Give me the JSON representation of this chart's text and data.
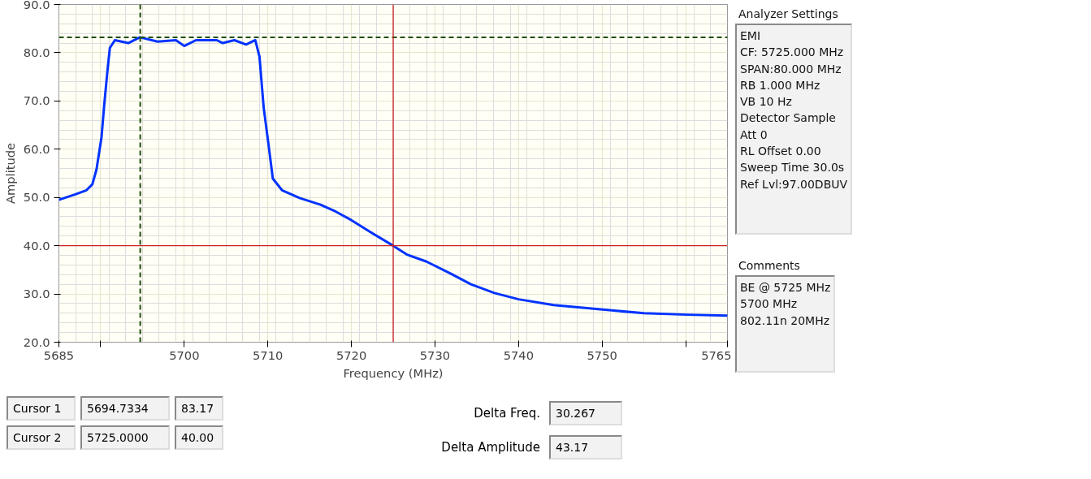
{
  "chart_data": {
    "type": "line",
    "xlabel": "Frequency (MHz)",
    "ylabel": "Amplitude",
    "xlim": [
      5685,
      5765
    ],
    "ylim": [
      20,
      90
    ],
    "xticks": [
      5685,
      {
        "value": 5690,
        "label": null
      },
      5700,
      5710,
      5720,
      5730,
      5740,
      5750,
      {
        "value": 5760,
        "label": null
      },
      5765
    ],
    "yticks": [
      {
        "value": 20,
        "label": "20.0"
      },
      {
        "value": 30,
        "label": "30.0"
      },
      {
        "value": 40,
        "label": "40.0"
      },
      {
        "value": 50,
        "label": "50.0"
      },
      {
        "value": 60,
        "label": "60.0"
      },
      {
        "value": 70,
        "label": "70.0"
      },
      {
        "value": 80,
        "label": "80.0"
      },
      {
        "value": 90,
        "label": "90.0"
      }
    ],
    "grid": true,
    "marker": "none",
    "line_style": "solid",
    "series": [
      {
        "color": "#0033ff",
        "x": [
          5685,
          5686.9,
          5688.3,
          5689.0,
          5689.5,
          5690.1,
          5690.4,
          5690.8,
          5691.1,
          5691.7,
          5693.3,
          5694.7,
          5696.8,
          5699.0,
          5700.0,
          5701.4,
          5703.9,
          5704.6,
          5706.0,
          5707.4,
          5708.5,
          5709.0,
          5709.5,
          5710.1,
          5710.6,
          5711.7,
          5713.8,
          5716.3,
          5718.1,
          5720.0,
          5722.3,
          5725.0,
          5726.6,
          5729.0,
          5731.9,
          5734.3,
          5737.1,
          5740.0,
          5744.2,
          5749.8,
          5755.0,
          5760.2,
          5765
        ],
        "values": [
          49.5,
          50.6,
          51.5,
          52.7,
          55.8,
          62.5,
          68.7,
          76.1,
          81.0,
          82.6,
          82.0,
          83.2,
          82.3,
          82.6,
          81.4,
          82.6,
          82.6,
          82.0,
          82.6,
          81.7,
          82.6,
          79.2,
          68.7,
          60.7,
          53.9,
          51.5,
          49.9,
          48.5,
          47.1,
          45.3,
          42.8,
          40.0,
          38.2,
          36.7,
          34.2,
          32.0,
          30.2,
          28.9,
          27.7,
          26.8,
          26.0,
          25.7,
          25.5
        ]
      }
    ],
    "ref_lines": [
      {
        "axis": "x",
        "value": 5694.7334,
        "color": "#1e4d0c",
        "line_style": "dashed"
      },
      {
        "axis": "y",
        "value": 83.17,
        "color": "#1e4d0c",
        "line_style": "dashed"
      },
      {
        "axis": "x",
        "value": 5725.0,
        "color": "#cc2222",
        "line_style": "solid"
      },
      {
        "axis": "y",
        "value": 40.0,
        "color": "#cc2222",
        "line_style": "solid"
      }
    ],
    "annotations": [
      "Analyzer Settings",
      "EMI",
      "CF: 5725.000 MHz",
      "SPAN:80.000 MHz",
      "RB 1.000 MHz",
      "VB 10 Hz",
      "Detector Sample",
      "Att 0",
      "RL Offset 0.00",
      "Sweep Time 30.0s",
      "Ref Lvl:97.00DBUV",
      "Comments",
      "BE @ 5725 MHz",
      "5700 MHz",
      "802.11n 20MHz",
      "Cursor 1",
      "5694.7334",
      "83.17",
      "Cursor 2",
      "5725.0000",
      "40.00",
      "Delta Freq.",
      "30.267",
      "Delta Amplitude",
      "43.17"
    ]
  }
}
